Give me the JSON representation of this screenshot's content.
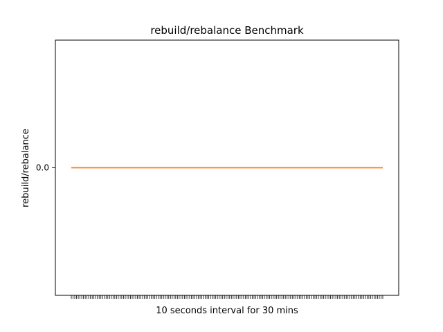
{
  "chart_data": {
    "type": "line",
    "title": "rebuild/rebalance Benchmark",
    "xlabel": "10 seconds interval for 30 mins",
    "ylabel": "rebuild/rebalance",
    "x_tick_count": 180,
    "x_tick_labels_shown": false,
    "y_ticks": [
      0.0
    ],
    "y_tick_labels": [
      "0.0"
    ],
    "ylim": [
      -0.055,
      0.055
    ],
    "grid": false,
    "series": [
      {
        "color": "#ff7f0e",
        "values": [
          0,
          0,
          0,
          0,
          0,
          0,
          0,
          0,
          0,
          0,
          0,
          0,
          0,
          0,
          0,
          0,
          0,
          0,
          0,
          0,
          0,
          0,
          0,
          0,
          0,
          0,
          0,
          0,
          0,
          0,
          0,
          0,
          0,
          0,
          0,
          0,
          0,
          0,
          0,
          0,
          0,
          0,
          0,
          0,
          0,
          0,
          0,
          0,
          0,
          0,
          0,
          0,
          0,
          0,
          0,
          0,
          0,
          0,
          0,
          0,
          0,
          0,
          0,
          0,
          0,
          0,
          0,
          0,
          0,
          0,
          0,
          0,
          0,
          0,
          0,
          0,
          0,
          0,
          0,
          0,
          0,
          0,
          0,
          0,
          0,
          0,
          0,
          0,
          0,
          0,
          0,
          0,
          0,
          0,
          0,
          0,
          0,
          0,
          0,
          0,
          0,
          0,
          0,
          0,
          0,
          0,
          0,
          0,
          0,
          0,
          0,
          0,
          0,
          0,
          0,
          0,
          0,
          0,
          0,
          0,
          0,
          0,
          0,
          0,
          0,
          0,
          0,
          0,
          0,
          0,
          0,
          0,
          0,
          0,
          0,
          0,
          0,
          0,
          0,
          0,
          0,
          0,
          0,
          0,
          0,
          0,
          0,
          0,
          0,
          0,
          0,
          0,
          0,
          0,
          0,
          0,
          0,
          0,
          0,
          0,
          0,
          0,
          0,
          0,
          0,
          0,
          0,
          0,
          0,
          0,
          0,
          0,
          0,
          0,
          0,
          0,
          0,
          0,
          0,
          0
        ]
      }
    ]
  }
}
